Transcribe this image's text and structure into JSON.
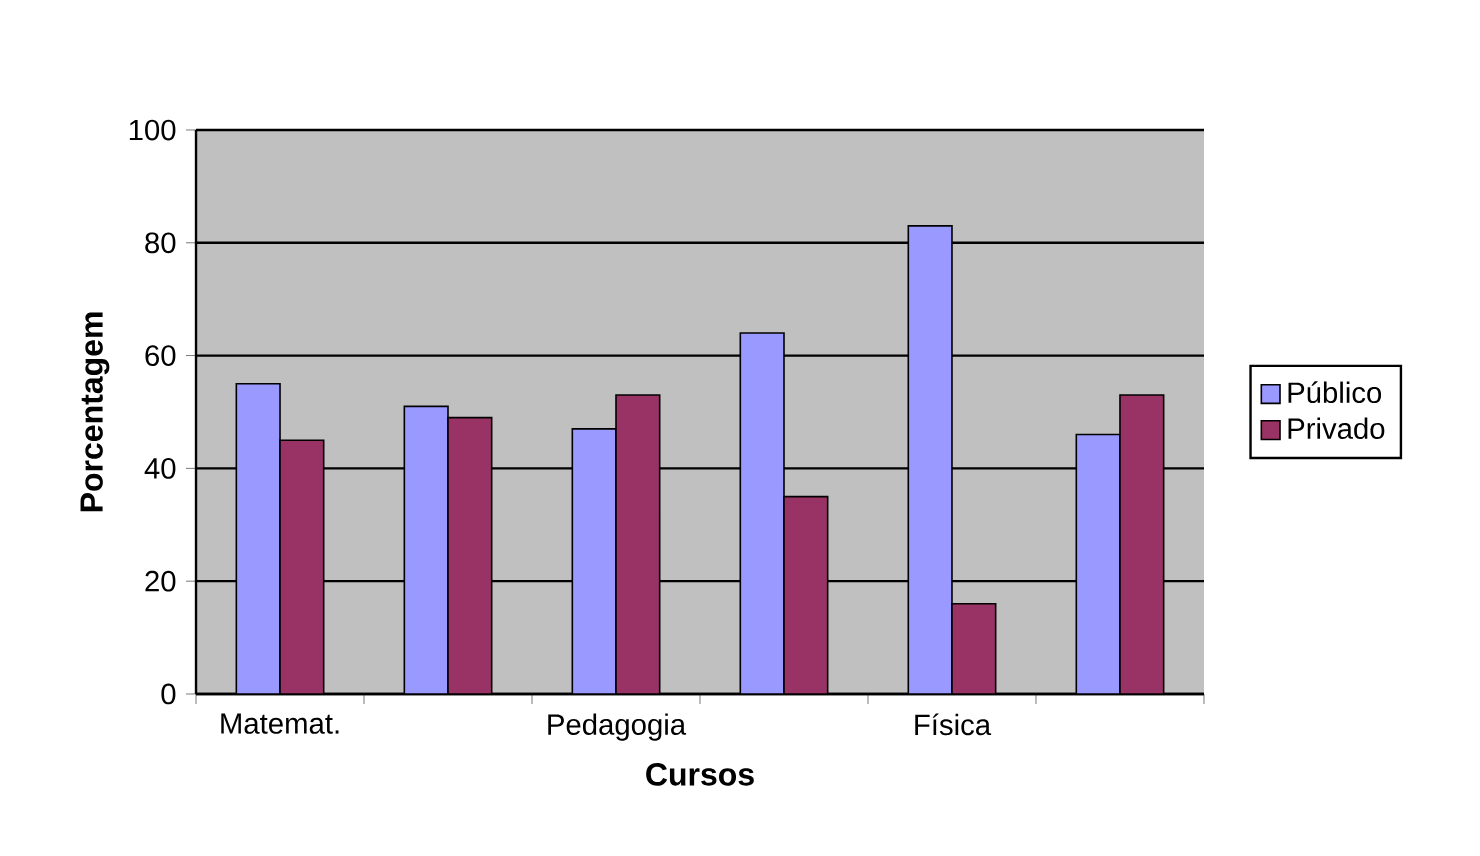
{
  "chart_data": {
    "type": "bar",
    "xlabel": "Cursos",
    "ylabel": "Porcentagem",
    "categories": [
      "Matemat.",
      null,
      "Pedagogia",
      null,
      "Física",
      null
    ],
    "series": [
      {
        "name": "Público",
        "color": "#9999ff",
        "values": [
          55,
          51,
          47,
          64,
          83,
          46
        ]
      },
      {
        "name": "Privado",
        "color": "#993366",
        "values": [
          45,
          49,
          53,
          35,
          16,
          53
        ]
      }
    ],
    "ylim": [
      0,
      100
    ],
    "yticks": [
      0,
      20,
      40,
      60,
      80,
      100
    ],
    "grid": "y",
    "legend": "right"
  }
}
